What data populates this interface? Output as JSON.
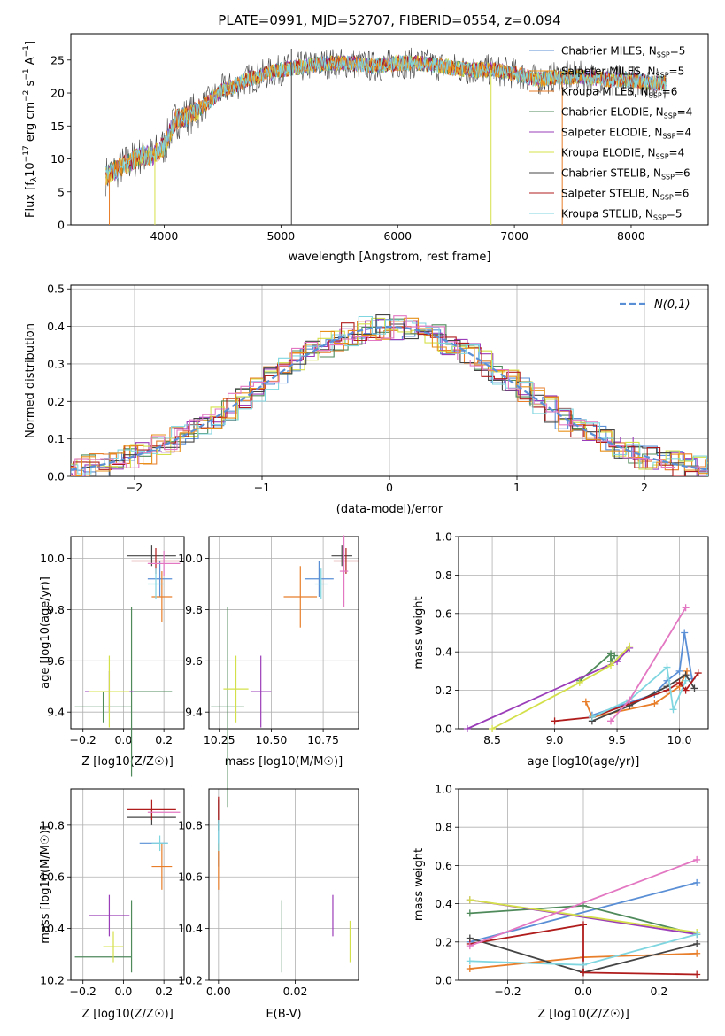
{
  "chart_data": [
    {
      "type": "line",
      "title": "PLATE=0991, MJD=52707, FIBERID=0554, z=0.094",
      "xlabel": "wavelength [Angstrom, rest frame]",
      "ylabel": "Flux [f_λ 10^-17 erg cm^-2 s^-1 A^-1]",
      "xlim": [
        3200,
        8660
      ],
      "ylim": [
        0,
        29
      ],
      "xticks": [
        4000,
        5000,
        6000,
        7000,
        8000
      ],
      "yticks": [
        0,
        5,
        10,
        15,
        20,
        25
      ],
      "grid": false,
      "legend_position": "top-right",
      "x": [
        3500,
        3600,
        3700,
        3800,
        3900,
        4000,
        4100,
        4200,
        4300,
        4400,
        4500,
        4600,
        4700,
        4800,
        4900,
        5000,
        5200,
        5400,
        5600,
        5800,
        6000,
        6200,
        6400,
        6600,
        6800,
        7000,
        7200,
        7400,
        7600,
        7800,
        8000,
        8200,
        8300
      ],
      "y": [
        7.5,
        8.5,
        9.5,
        10.5,
        10.5,
        12,
        16,
        16.5,
        17.5,
        19,
        20.5,
        21,
        22,
        22.5,
        23,
        23.5,
        24,
        24.5,
        24.5,
        24,
        24.5,
        24.5,
        24,
        23.5,
        23.5,
        23,
        22,
        22.5,
        22.5,
        22,
        22,
        21.5,
        21.5
      ],
      "series": [
        {
          "name": "Chabrier MILES, N_SSP=5",
          "color": "#5a8fd6"
        },
        {
          "name": "Salpeter MILES, N_SSP=5",
          "color": "#e8901a"
        },
        {
          "name": "Kroupa MILES, N_SSP=6",
          "color": "#e87e2a"
        },
        {
          "name": "Chabrier ELODIE, N_SSP=4",
          "color": "#4f8a5b"
        },
        {
          "name": "Salpeter ELODIE, N_SSP=4",
          "color": "#9b3db8"
        },
        {
          "name": "Kroupa ELODIE, N_SSP=4",
          "color": "#d4e04a"
        },
        {
          "name": "Chabrier STELIB, N_SSP=6",
          "color": "#444444"
        },
        {
          "name": "Salpeter STELIB, N_SSP=6",
          "color": "#b01c1c"
        },
        {
          "name": "Kroupa STELIB, N_SSP=5",
          "color": "#7fd6e0"
        }
      ],
      "legend_labels": [
        "Chabrier MILES, N",
        "Salpeter MILES, N",
        "Kroupa MILES, N",
        "Chabrier ELODIE, N",
        "Salpeter ELODIE, N",
        "Kroupa ELODIE, N",
        "Chabrier STELIB, N",
        "Salpeter STELIB, N",
        "Kroupa STELIB, N"
      ],
      "legend_values": [
        "=5",
        "=5",
        "=6",
        "=4",
        "=4",
        "=4",
        "=6",
        "=6",
        "=5"
      ],
      "legend_subscript": "SSP"
    },
    {
      "type": "line",
      "title": "",
      "xlabel": "(data-model)/error",
      "ylabel": "Normed distribution",
      "xlim": [
        -2.5,
        2.5
      ],
      "ylim": [
        0,
        0.51
      ],
      "xticks": [
        -2,
        -1,
        0,
        1,
        2
      ],
      "xticklabels": [
        "−2",
        "−1",
        "0",
        "1",
        "2"
      ],
      "yticks": [
        0.0,
        0.1,
        0.2,
        0.3,
        0.4,
        0.5
      ],
      "yticklabels": [
        "0.0",
        "0.1",
        "0.2",
        "0.3",
        "0.4",
        "0.5"
      ],
      "grid": true,
      "legend_position": "top-right",
      "legend_label": "N(0,1)",
      "series": [
        {
          "name": "N(0,1)",
          "color": "#5a8fd6",
          "style": "dashed",
          "function": "normal_pdf"
        }
      ],
      "histogram_colors": [
        "#5a8fd6",
        "#e87e2a",
        "#4f8a5b",
        "#9b3db8",
        "#d4e04a",
        "#444444",
        "#b01c1c",
        "#7fd6e0",
        "#e8901a",
        "#e377c2"
      ]
    },
    {
      "type": "scatter",
      "title": "",
      "xlabel": "Z [log10(Z/Z☉)]",
      "ylabel": "age [log10(age/yr)]",
      "xlim": [
        -0.26,
        0.3
      ],
      "ylim": [
        9.335,
        10.085
      ],
      "xticks": [
        -0.2,
        0.0,
        0.2
      ],
      "xticklabels": [
        "−0.2",
        "0.0",
        "0.2"
      ],
      "yticks": [
        9.4,
        9.6,
        9.8,
        10.0
      ],
      "yticklabels": [
        "9.4",
        "9.6",
        "9.8",
        "10.0"
      ],
      "grid": true,
      "points": [
        {
          "x": 0.18,
          "y": 9.92,
          "xerr": 0.06,
          "yerr": 0.07,
          "color": "#5a8fd6"
        },
        {
          "x": 0.19,
          "y": 9.85,
          "xerr": 0.05,
          "yerr": 0.1,
          "color": "#e87e2a"
        },
        {
          "x": -0.1,
          "y": 9.42,
          "xerr": 0.14,
          "yerr": 0.06,
          "color": "#4f8a5b"
        },
        {
          "x": 0.04,
          "y": 9.48,
          "xerr": 0.2,
          "yerr": 0.33,
          "color": "#4f8a5b"
        },
        {
          "x": -0.07,
          "y": 9.48,
          "xerr": 0.12,
          "yerr": 0.08,
          "color": "#9b3db8"
        },
        {
          "x": -0.07,
          "y": 9.48,
          "xerr": 0.1,
          "yerr": 0.14,
          "color": "#d4e04a"
        },
        {
          "x": 0.14,
          "y": 10.01,
          "xerr": 0.12,
          "yerr": 0.04,
          "color": "#444444"
        },
        {
          "x": 0.16,
          "y": 9.99,
          "xerr": 0.12,
          "yerr": 0.05,
          "color": "#b01c1c"
        },
        {
          "x": 0.16,
          "y": 9.9,
          "xerr": 0.04,
          "yerr": 0.06,
          "color": "#7fd6e0"
        },
        {
          "x": 0.2,
          "y": 9.98,
          "xerr": 0.08,
          "yerr": 0.05,
          "color": "#e377c2"
        }
      ]
    },
    {
      "type": "scatter",
      "title": "",
      "xlabel": "mass [log10(M/M☉)]",
      "ylabel": "",
      "xlim": [
        10.2,
        10.92
      ],
      "ylim": [
        9.335,
        10.085
      ],
      "xticks": [
        10.25,
        10.5,
        10.75
      ],
      "xticklabels": [
        "10.25",
        "10.50",
        "10.75"
      ],
      "yticks": [
        9.4,
        9.6,
        9.8,
        10.0
      ],
      "yticklabels": [
        "9.4",
        "9.6",
        "9.8",
        "10.0"
      ],
      "grid": true,
      "points": [
        {
          "x": 10.73,
          "y": 9.92,
          "xerr": 0.07,
          "yerr": 0.07,
          "color": "#5a8fd6"
        },
        {
          "x": 10.64,
          "y": 9.85,
          "xerr": 0.08,
          "yerr": 0.12,
          "color": "#e87e2a"
        },
        {
          "x": 10.29,
          "y": 9.42,
          "xerr": 0.08,
          "yerr": 0.39,
          "color": "#4f8a5b"
        },
        {
          "x": 10.45,
          "y": 9.48,
          "xerr": 0.05,
          "yerr": 0.14,
          "color": "#9b3db8"
        },
        {
          "x": 10.33,
          "y": 9.49,
          "xerr": 0.06,
          "yerr": 0.13,
          "color": "#d4e04a"
        },
        {
          "x": 10.84,
          "y": 10.01,
          "xerr": 0.05,
          "yerr": 0.04,
          "color": "#444444"
        },
        {
          "x": 10.86,
          "y": 9.99,
          "xerr": 0.06,
          "yerr": 0.05,
          "color": "#b01c1c"
        },
        {
          "x": 10.74,
          "y": 9.9,
          "xerr": 0.03,
          "yerr": 0.06,
          "color": "#7fd6e0"
        },
        {
          "x": 10.85,
          "y": 9.95,
          "xerr": 0.02,
          "yerr": 0.14,
          "color": "#e377c2"
        }
      ]
    },
    {
      "type": "line",
      "title": "",
      "xlabel": "age [log10(age/yr)]",
      "ylabel": "mass weight",
      "xlim": [
        8.23,
        10.23
      ],
      "ylim": [
        0,
        1.0
      ],
      "xticks": [
        8.5,
        9.0,
        9.5,
        10.0
      ],
      "xticklabels": [
        "8.5",
        "9.0",
        "9.5",
        "10.0"
      ],
      "yticks": [
        0.0,
        0.2,
        0.4,
        0.6,
        0.8,
        1.0
      ],
      "yticklabels": [
        "0.0",
        "0.2",
        "0.4",
        "0.6",
        "0.8",
        "1.0"
      ],
      "grid": true,
      "series": [
        {
          "color": "#5a8fd6",
          "points": [
            [
              9.3,
              0.07
            ],
            [
              9.8,
              0.18
            ],
            [
              9.9,
              0.25
            ],
            [
              10.0,
              0.3
            ],
            [
              10.04,
              0.5
            ],
            [
              10.1,
              0.26
            ]
          ]
        },
        {
          "color": "#e87e2a",
          "points": [
            [
              9.25,
              0.14
            ],
            [
              9.3,
              0.06
            ],
            [
              9.8,
              0.13
            ],
            [
              10.0,
              0.22
            ],
            [
              10.06,
              0.3
            ]
          ]
        },
        {
          "color": "#4f8a5b",
          "points": [
            [
              9.2,
              0.25
            ],
            [
              9.45,
              0.39
            ],
            [
              9.45,
              0.35
            ],
            [
              9.48,
              0.38
            ]
          ]
        },
        {
          "color": "#9b3db8",
          "points": [
            [
              8.3,
              0.0
            ],
            [
              9.5,
              0.35
            ],
            [
              9.6,
              0.42
            ]
          ]
        },
        {
          "color": "#d4e04a",
          "points": [
            [
              8.5,
              0.0
            ],
            [
              9.2,
              0.24
            ],
            [
              9.45,
              0.33
            ],
            [
              9.6,
              0.43
            ]
          ]
        },
        {
          "color": "#444444",
          "points": [
            [
              9.3,
              0.04
            ],
            [
              9.6,
              0.12
            ],
            [
              9.9,
              0.22
            ],
            [
              10.05,
              0.28
            ],
            [
              10.12,
              0.21
            ]
          ]
        },
        {
          "color": "#b01c1c",
          "points": [
            [
              9.0,
              0.04
            ],
            [
              9.3,
              0.06
            ],
            [
              9.9,
              0.2
            ],
            [
              10.0,
              0.24
            ],
            [
              10.05,
              0.2
            ],
            [
              10.15,
              0.29
            ]
          ]
        },
        {
          "color": "#7fd6e0",
          "points": [
            [
              9.3,
              0.06
            ],
            [
              9.6,
              0.15
            ],
            [
              9.9,
              0.32
            ],
            [
              9.95,
              0.1
            ],
            [
              10.05,
              0.25
            ]
          ]
        },
        {
          "color": "#e377c2",
          "points": [
            [
              9.45,
              0.04
            ],
            [
              9.6,
              0.15
            ],
            [
              10.05,
              0.63
            ]
          ]
        }
      ]
    },
    {
      "type": "scatter",
      "title": "",
      "xlabel": "Z [log10(Z/Z☉)]",
      "ylabel": "mass [log10(M/M☉)]",
      "xlim": [
        -0.26,
        0.3
      ],
      "ylim": [
        10.2,
        10.94
      ],
      "xticks": [
        -0.2,
        0.0,
        0.2
      ],
      "xticklabels": [
        "−0.2",
        "0.0",
        "0.2"
      ],
      "yticks": [
        10.2,
        10.4,
        10.6,
        10.8
      ],
      "yticklabels": [
        "10.2",
        "10.4",
        "10.6",
        "10.8"
      ],
      "grid": true,
      "points": [
        {
          "x": 0.15,
          "y": 10.73,
          "xerr": 0.07,
          "yerr": 0.0,
          "color": "#5a8fd6"
        },
        {
          "x": 0.19,
          "y": 10.64,
          "xerr": 0.05,
          "yerr": 0.09,
          "color": "#e87e2a"
        },
        {
          "x": -0.1,
          "y": 10.29,
          "xerr": 0.14,
          "yerr": 0.0,
          "color": "#4f8a5b"
        },
        {
          "x": 0.04,
          "y": 10.37,
          "xerr": 0.0,
          "yerr": 0.14,
          "color": "#4f8a5b"
        },
        {
          "x": -0.07,
          "y": 10.45,
          "xerr": 0.1,
          "yerr": 0.08,
          "color": "#9b3db8"
        },
        {
          "x": -0.05,
          "y": 10.33,
          "xerr": 0.05,
          "yerr": 0.06,
          "color": "#d4e04a"
        },
        {
          "x": 0.14,
          "y": 10.83,
          "xerr": 0.12,
          "yerr": 0.03,
          "color": "#444444"
        },
        {
          "x": 0.14,
          "y": 10.86,
          "xerr": 0.12,
          "yerr": 0.04,
          "color": "#b01c1c"
        },
        {
          "x": 0.18,
          "y": 10.73,
          "xerr": 0.04,
          "yerr": 0.03,
          "color": "#7fd6e0"
        },
        {
          "x": 0.2,
          "y": 10.85,
          "xerr": 0.08,
          "yerr": 0.0,
          "color": "#e377c2"
        }
      ]
    },
    {
      "type": "scatter",
      "title": "",
      "xlabel": "E(B-V)",
      "ylabel": "",
      "xlim": [
        -0.0025,
        0.0365
      ],
      "ylim": [
        10.2,
        10.94
      ],
      "xticks": [
        0.0,
        0.02
      ],
      "xticklabels": [
        "0.00",
        "0.02"
      ],
      "yticks": [
        10.2,
        10.4,
        10.6,
        10.8
      ],
      "yticklabels": [
        "10.2",
        "10.4",
        "10.6",
        "10.8"
      ],
      "grid": true,
      "points": [
        {
          "x": 0.0,
          "y": 10.73,
          "yerr": 0.09,
          "color": "#5a8fd6"
        },
        {
          "x": 0.0,
          "y": 10.64,
          "yerr": 0.09,
          "color": "#e87e2a"
        },
        {
          "x": 0.0165,
          "y": 10.37,
          "yerr": 0.14,
          "color": "#4f8a5b"
        },
        {
          "x": 0.0298,
          "y": 10.45,
          "yerr": 0.08,
          "color": "#9b3db8"
        },
        {
          "x": 0.0343,
          "y": 10.35,
          "yerr": 0.08,
          "color": "#d4e04a"
        },
        {
          "x": 0.0,
          "y": 10.84,
          "yerr": 0.06,
          "color": "#444444"
        },
        {
          "x": 0.0,
          "y": 10.86,
          "yerr": 0.05,
          "color": "#b01c1c"
        },
        {
          "x": 0.0,
          "y": 10.76,
          "yerr": 0.06,
          "color": "#7fd6e0"
        }
      ]
    },
    {
      "type": "line",
      "title": "",
      "xlabel": "Z [log10(Z/Z☉)]",
      "ylabel": "mass weight",
      "xlim": [
        -0.33,
        0.33
      ],
      "ylim": [
        0,
        1.0
      ],
      "xticks": [
        -0.2,
        0.0,
        0.2
      ],
      "xticklabels": [
        "−0.2",
        "0.0",
        "0.2"
      ],
      "yticks": [
        0.0,
        0.2,
        0.4,
        0.6,
        0.8,
        1.0
      ],
      "yticklabels": [
        "0.0",
        "0.2",
        "0.4",
        "0.6",
        "0.8",
        "1.0"
      ],
      "grid": true,
      "series": [
        {
          "color": "#5a8fd6",
          "points": [
            [
              -0.3,
              0.2
            ],
            [
              0.3,
              0.51
            ]
          ]
        },
        {
          "color": "#e87e2a",
          "points": [
            [
              -0.3,
              0.06
            ],
            [
              0.0,
              0.12
            ],
            [
              0.3,
              0.14
            ]
          ]
        },
        {
          "color": "#4f8a5b",
          "points": [
            [
              -0.3,
              0.35
            ],
            [
              0.0,
              0.39
            ],
            [
              0.3,
              0.24
            ]
          ]
        },
        {
          "color": "#9b3db8",
          "points": [
            [
              -0.3,
              0.42
            ],
            [
              0.3,
              0.24
            ]
          ]
        },
        {
          "color": "#d4e04a",
          "points": [
            [
              -0.3,
              0.42
            ],
            [
              0.3,
              0.25
            ]
          ]
        },
        {
          "color": "#444444",
          "points": [
            [
              -0.3,
              0.22
            ],
            [
              0.0,
              0.04
            ],
            [
              0.3,
              0.19
            ]
          ]
        },
        {
          "color": "#b01c1c",
          "points": [
            [
              -0.3,
              0.19
            ],
            [
              0.0,
              0.29
            ],
            [
              0.0,
              0.04
            ],
            [
              0.3,
              0.03
            ]
          ]
        },
        {
          "color": "#7fd6e0",
          "points": [
            [
              -0.3,
              0.1
            ],
            [
              0.0,
              0.08
            ],
            [
              0.3,
              0.24
            ]
          ]
        },
        {
          "color": "#e377c2",
          "points": [
            [
              -0.3,
              0.18
            ],
            [
              0.3,
              0.63
            ]
          ]
        }
      ]
    }
  ]
}
